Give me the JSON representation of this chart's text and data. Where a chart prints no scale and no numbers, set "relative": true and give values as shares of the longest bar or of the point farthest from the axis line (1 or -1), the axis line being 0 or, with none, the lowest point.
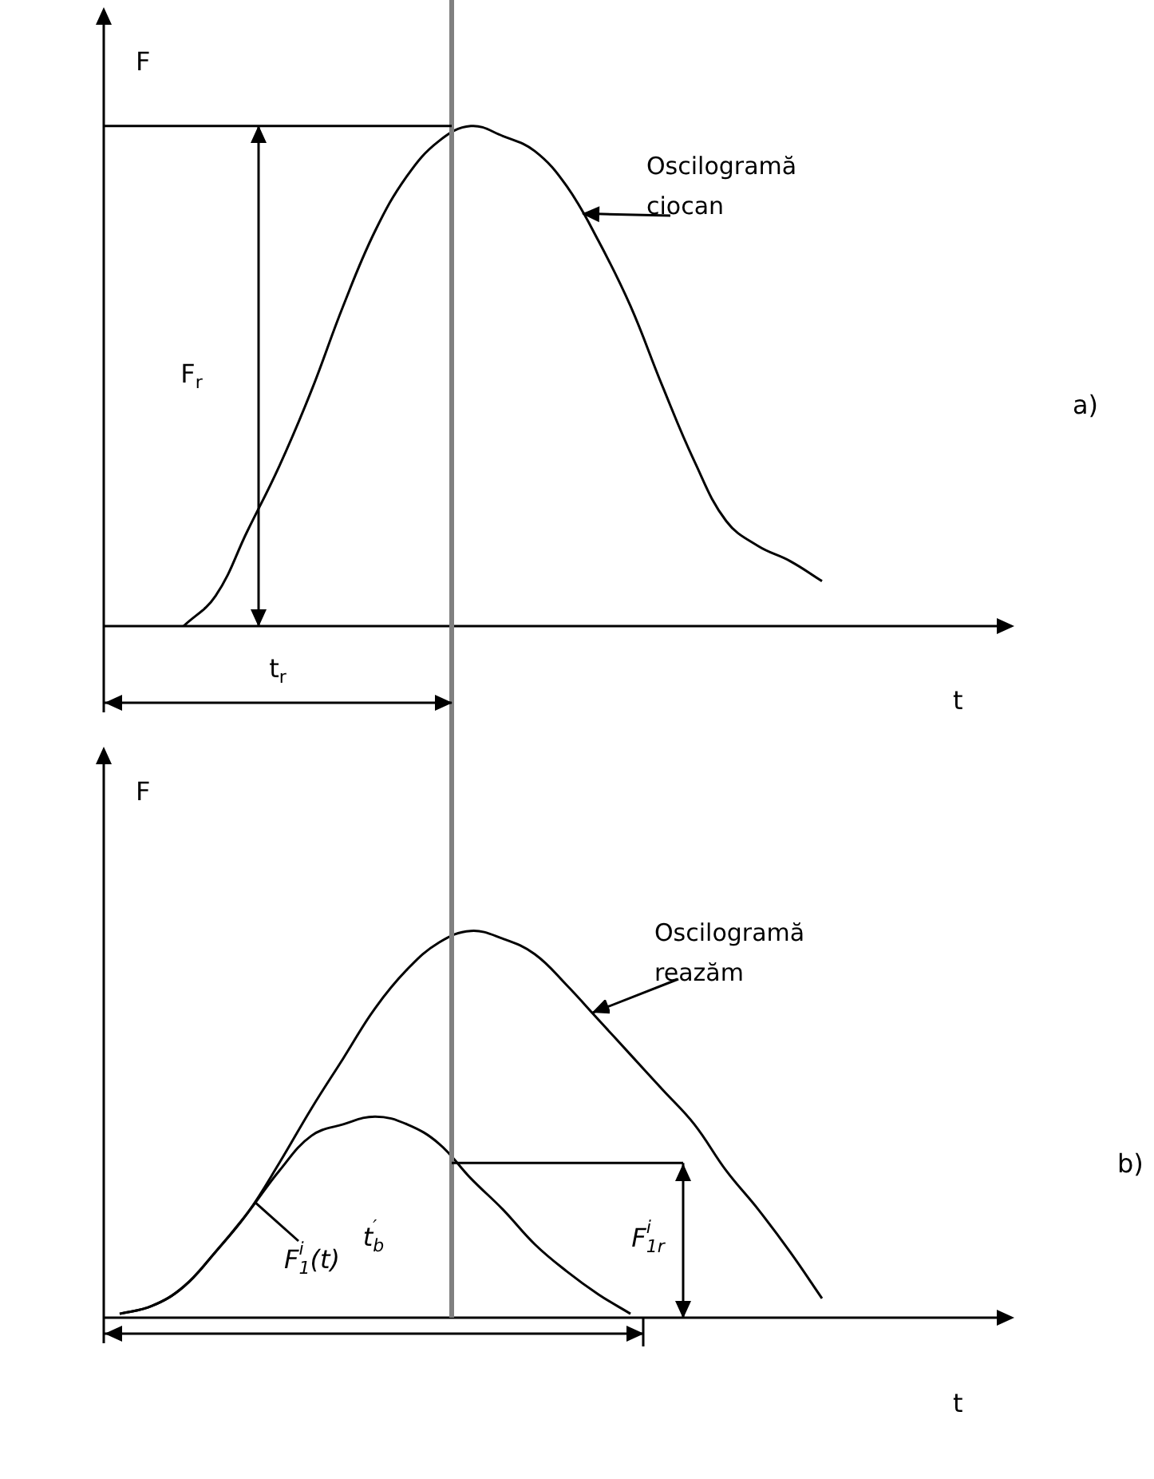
{
  "chart_data": [
    {
      "type": "line",
      "relative": true,
      "ylabel": "F",
      "xlabel": "t",
      "marker": "none",
      "categories": [
        null,
        null,
        null,
        null,
        null,
        null,
        null,
        null,
        null,
        null,
        null,
        null,
        null,
        null,
        null,
        null,
        null,
        null,
        null,
        null,
        null,
        null,
        null,
        null,
        null,
        null,
        null,
        null
      ],
      "series": [
        {
          "name": "Oscilogramă ciocan",
          "color": "#000000",
          "values": [
            null,
            null,
            0,
            0.06,
            0.19,
            0.32,
            0.47,
            0.64,
            0.79,
            0.9,
            0.97,
            1,
            0.98,
            0.95,
            0.88,
            0.77,
            0.64,
            0.48,
            0.33,
            0.21,
            0.16,
            0.13,
            0.09,
            null,
            null,
            null,
            null,
            null
          ]
        }
      ],
      "ref_lines": [
        {
          "axis": "y",
          "value": 1,
          "color": "#000000"
        }
      ],
      "annotations": [
        "a)",
        "t$_{r}$",
        "F$_{r}$"
      ]
    },
    {
      "type": "line",
      "relative": true,
      "ylabel": "F",
      "xlabel": "t",
      "marker": "none",
      "categories": [
        null,
        null,
        null,
        null,
        null,
        null,
        null,
        null,
        null,
        null,
        null,
        null,
        null,
        null,
        null,
        null,
        null,
        null,
        null,
        null,
        null,
        null,
        null,
        null,
        null,
        null,
        null,
        null
      ],
      "series": [
        {
          "name": "Oscilogramă reazăm",
          "color": "#000000",
          "values": [
            0.01,
            0.03,
            0.08,
            0.17,
            0.27,
            0.4,
            0.54,
            0.67,
            0.8,
            0.9,
            0.97,
            1,
            0.98,
            0.94,
            0.86,
            0.77,
            0.68,
            0.59,
            0.5,
            0.38,
            0.28,
            0.17,
            0.05,
            null,
            null,
            null,
            null,
            null
          ]
        },
        {
          "name": "F$_{1}$$^{i}$(t)",
          "color": "#000000",
          "values": [
            0.01,
            0.03,
            0.08,
            0.17,
            0.27,
            0.38,
            0.47,
            0.5,
            0.52,
            0.5,
            0.45,
            0.36,
            0.28,
            0.19,
            0.12,
            0.06,
            0.01,
            null,
            null,
            null,
            null,
            null,
            null,
            null,
            null,
            null,
            null,
            null
          ]
        }
      ],
      "ref_lines": [
        {
          "axis": "y",
          "value": 0.4,
          "color": "#000000"
        }
      ],
      "annotations": [
        "b)",
        "t$_{b}$$^{′}$",
        "F$_{1r}$$^{i}$"
      ]
    }
  ]
}
